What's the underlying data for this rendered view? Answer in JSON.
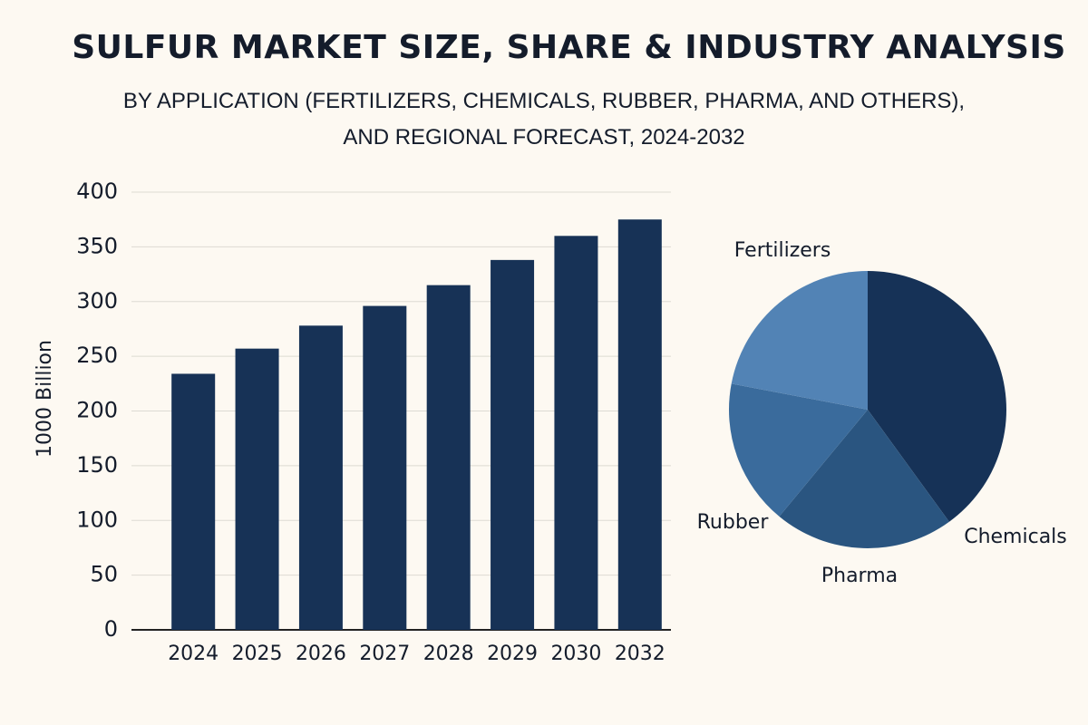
{
  "chart_data": [
    {
      "type": "bar",
      "title": "SULFUR MARKET SIZE, SHARE & INDUSTRY ANALYSIS",
      "subtitle": "BY APPLICATION (FERTILIZERS, CHEMICALS, RUBBER, PHARMA, AND OTHERS), AND REGIONAL FORECAST, 2024-2032",
      "y_label": "1000 Billion",
      "categories": [
        "2024",
        "2025",
        "2026",
        "2027",
        "2028",
        "2029",
        "2030",
        "2032"
      ],
      "values": [
        234,
        257,
        278,
        296,
        315,
        338,
        360,
        375
      ],
      "color": "#173256",
      "ylim": [
        0,
        400
      ],
      "yticks": [
        0,
        50,
        100,
        150,
        200,
        250,
        300,
        350,
        400
      ],
      "grid": true
    },
    {
      "type": "pie",
      "categories": [
        "Chemicals",
        "Pharma",
        "Rubber",
        "Fertilizers"
      ],
      "values": [
        40,
        21,
        17,
        22
      ],
      "colors": [
        "#163257",
        "#2a5580",
        "#3a6b9c",
        "#5283b5"
      ]
    }
  ]
}
